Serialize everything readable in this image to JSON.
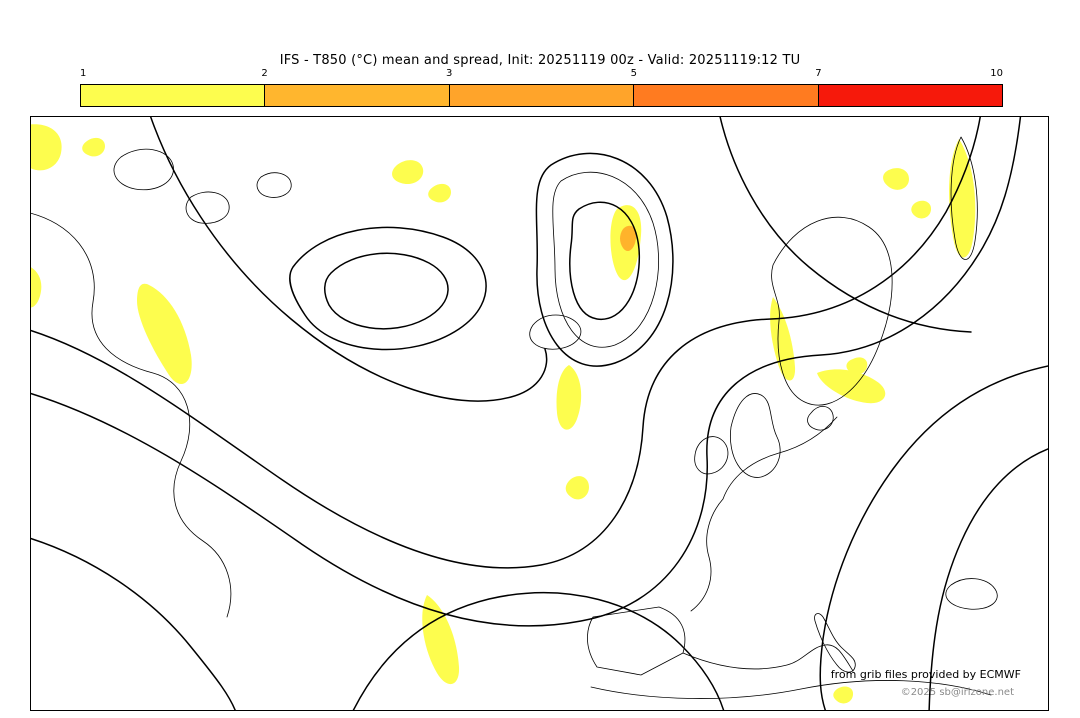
{
  "header": {
    "title": "IFS - T850 (°C) mean and spread, Init: 20251119 00z - Valid: 20251119:12 TU"
  },
  "colorbar": {
    "ticks": [
      "1",
      "2",
      "3",
      "5",
      "7",
      "10"
    ],
    "segments": [
      {
        "range": "1-2",
        "color": "#fdfd4e"
      },
      {
        "range": "2-3",
        "color": "#ffb62e"
      },
      {
        "range": "3-5",
        "color": "#ffa42a"
      },
      {
        "range": "5-7",
        "color": "#ff7b20"
      },
      {
        "range": "7-10",
        "color": "#f6190b"
      }
    ]
  },
  "map": {
    "contour_color": "#000000",
    "spread_low_color": "#fdfd4e",
    "spread_mid_color": "#ffb32b"
  },
  "footer": {
    "credit": "from grib files provided by ECMWF",
    "copyright": "©2025 sb@irizone.net"
  }
}
